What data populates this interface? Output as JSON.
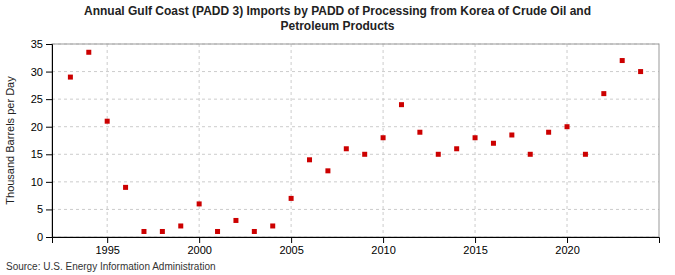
{
  "chart_data": {
    "type": "scatter",
    "title": "Annual Gulf Coast (PADD 3) Imports by PADD of Processing from Korea of Crude Oil and\nPetroleum Products",
    "ylabel": "Thousand Barrels per Day",
    "source": "Source: U.S. Energy Information Administration",
    "x": [
      1993,
      1994,
      1995,
      1996,
      1997,
      1998,
      1999,
      2000,
      2001,
      2002,
      2003,
      2004,
      2005,
      2006,
      2007,
      2008,
      2009,
      2010,
      2011,
      2012,
      2013,
      2014,
      2015,
      2016,
      2017,
      2018,
      2019,
      2020,
      2021,
      2022,
      2023,
      2024
    ],
    "values": [
      29.0,
      33.5,
      21.0,
      9.0,
      1.0,
      1.0,
      2.0,
      6.0,
      1.0,
      3.0,
      1.0,
      2.0,
      7.0,
      14.0,
      12.0,
      16.0,
      15.0,
      18.0,
      24.0,
      19.0,
      15.0,
      16.0,
      18.0,
      17.0,
      18.5,
      15.0,
      19.0,
      20.0,
      15.0,
      26.0,
      32.0,
      30.0
    ],
    "color": "#cc0000",
    "marker": "square",
    "xlim": [
      1992,
      2025
    ],
    "xticks": [
      1995,
      2000,
      2005,
      2010,
      2015,
      2020
    ],
    "ylim": [
      0,
      35
    ],
    "yticks": [
      0,
      5,
      10,
      15,
      20,
      25,
      30,
      35
    ],
    "grid": true
  }
}
